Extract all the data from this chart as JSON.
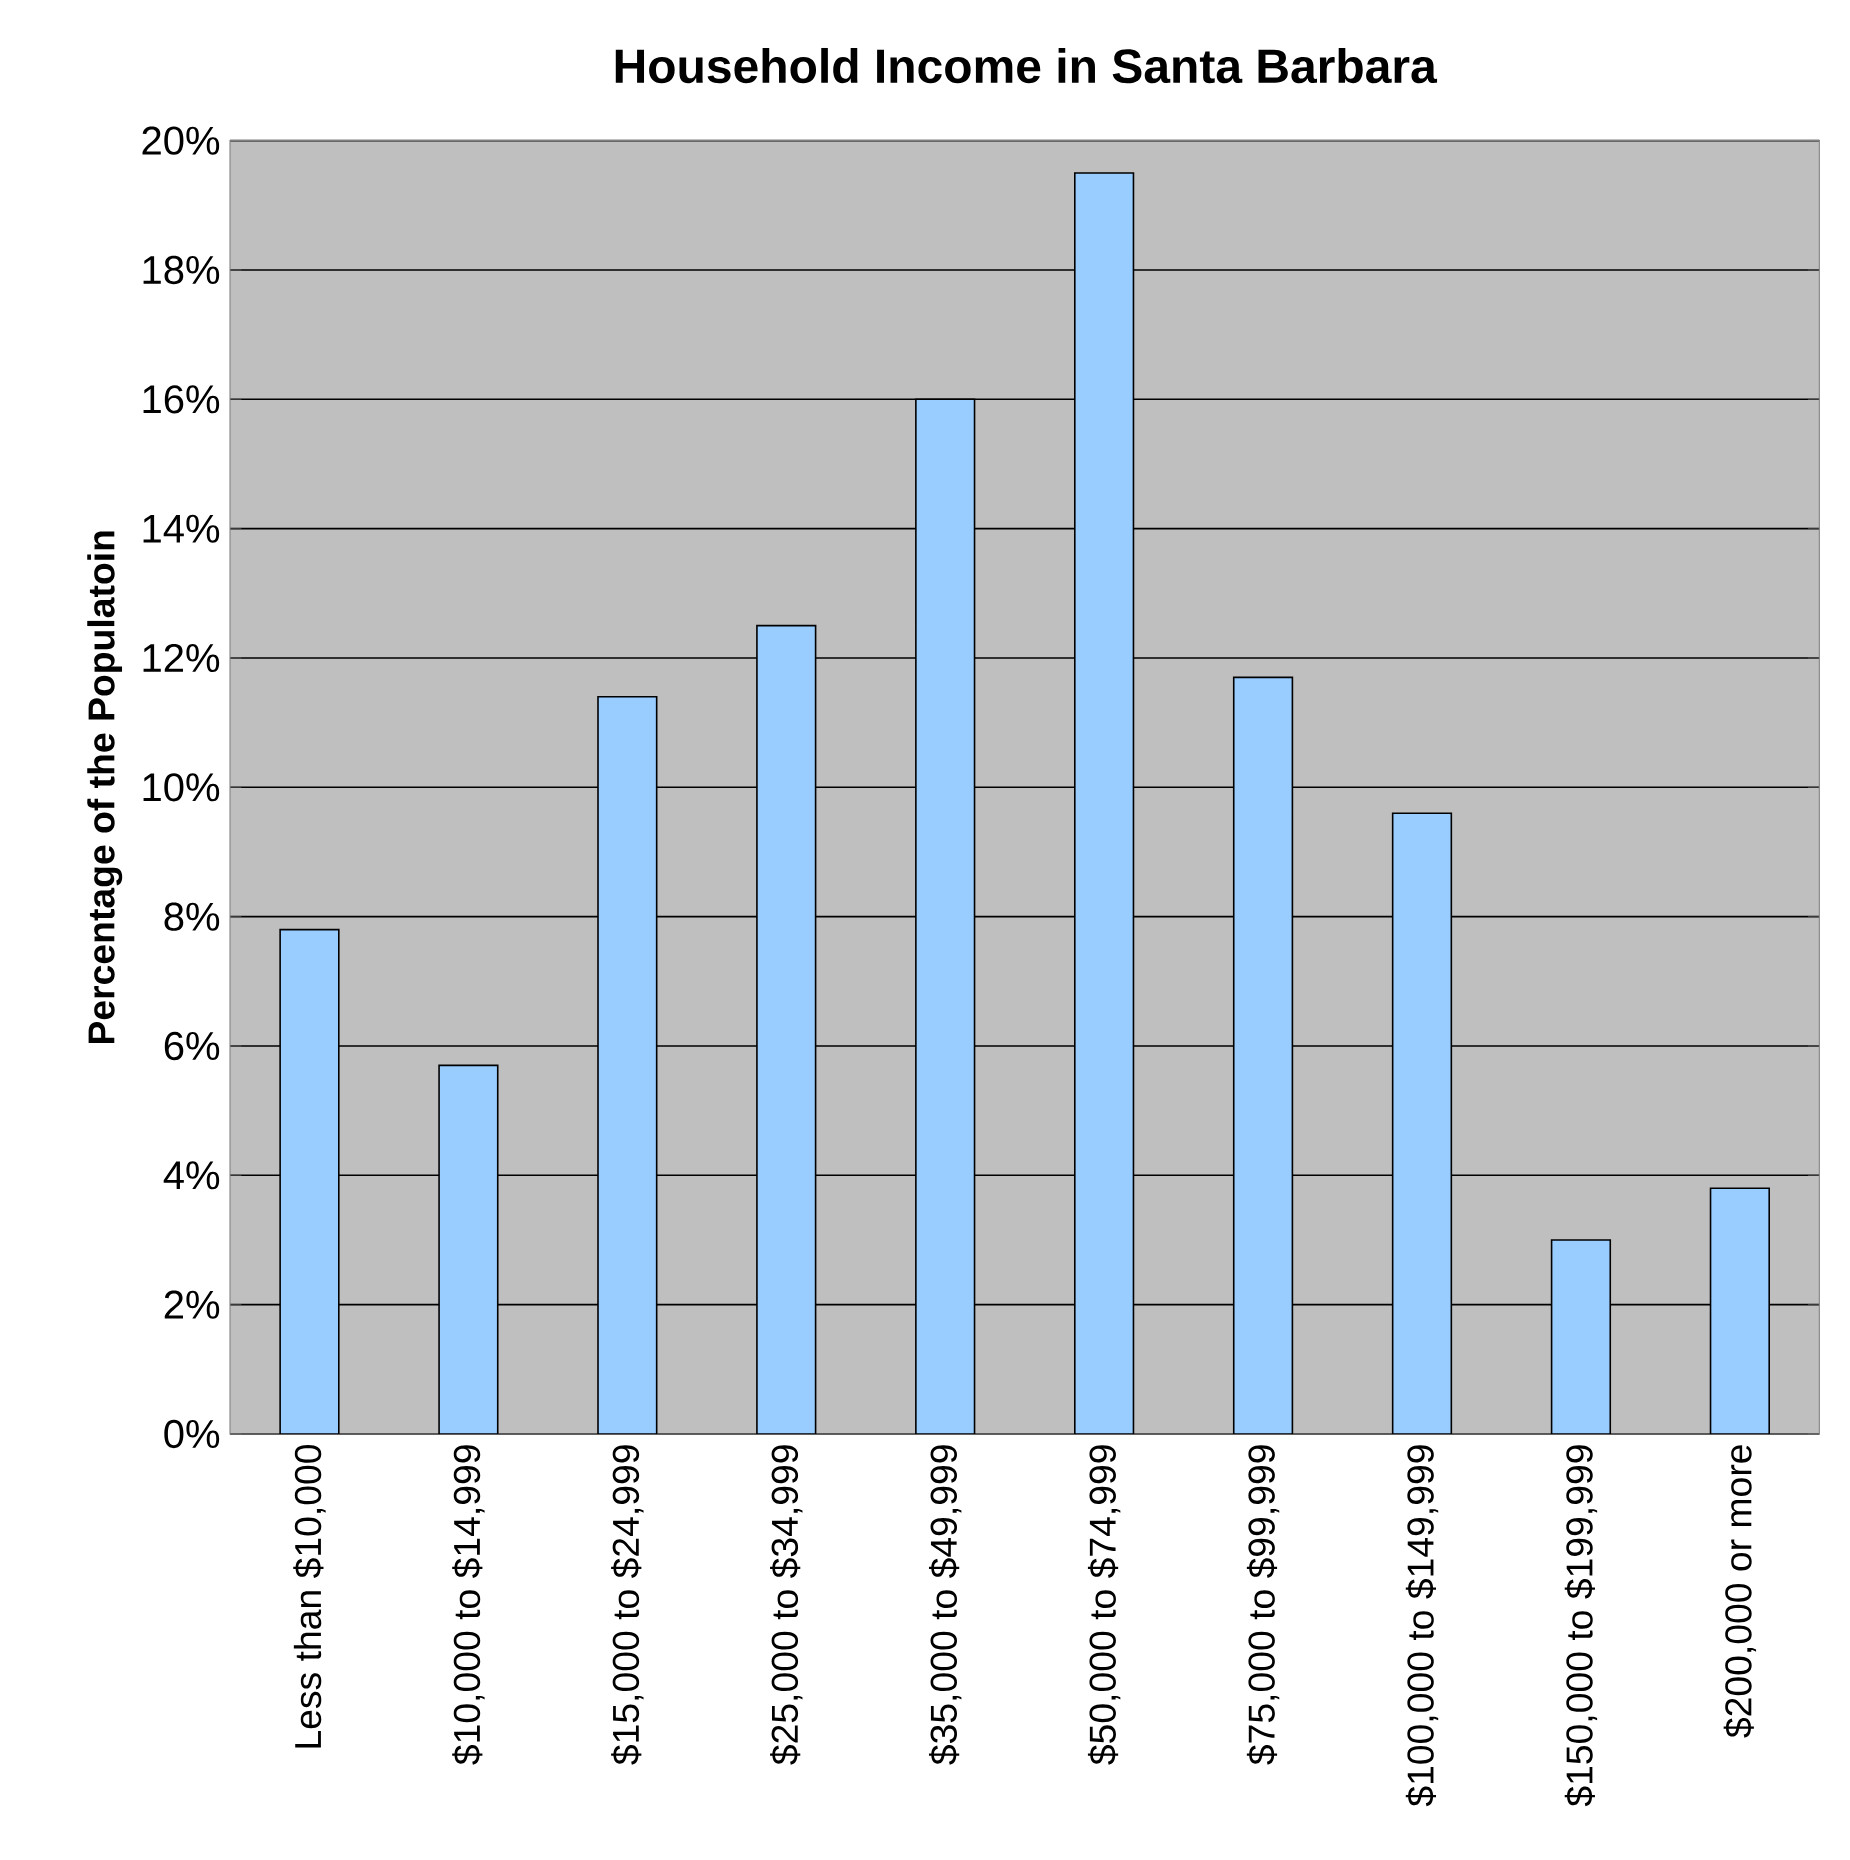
{
  "chart_data": {
    "type": "bar",
    "title": "Household Income in Santa Barbara",
    "ylabel": "Percentage of the Populatoin",
    "categories": [
      "Less than $10,000",
      "$10,000 to $14,999",
      "$15,000 to $24,999",
      "$25,000 to $34,999",
      "$35,000 to $49,999",
      "$50,000 to $74,999",
      "$75,000 to $99,999",
      "$100,000 to $149,999",
      "$150,000 to $199,999",
      "$200,000 or more"
    ],
    "values": [
      7.8,
      5.7,
      11.4,
      12.5,
      16.0,
      19.5,
      11.7,
      9.6,
      3.0,
      3.8
    ],
    "color": "#99ccff",
    "ylim": [
      0,
      20
    ],
    "yticks": [
      {
        "value": 0,
        "label": "0%"
      },
      {
        "value": 2,
        "label": "2%"
      },
      {
        "value": 4,
        "label": "4%"
      },
      {
        "value": 6,
        "label": "6%"
      },
      {
        "value": 8,
        "label": "8%"
      },
      {
        "value": 10,
        "label": "10%"
      },
      {
        "value": 12,
        "label": "12%"
      },
      {
        "value": 14,
        "label": "14%"
      },
      {
        "value": 16,
        "label": "16%"
      },
      {
        "value": 18,
        "label": "18%"
      },
      {
        "value": 20,
        "label": "20%"
      }
    ],
    "grid": "y"
  }
}
